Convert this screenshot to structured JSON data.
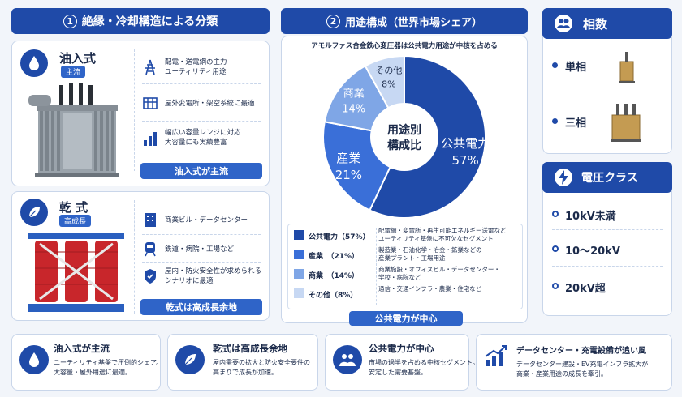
{
  "left_section": {
    "title_num": "1",
    "title": "絶縁・冷却構造による分類",
    "oil": {
      "name": "油入式",
      "badge": "主流",
      "features": [
        {
          "icon": "power-tower-icon",
          "text": "配電・送電網の主力\nユーティリティ用途"
        },
        {
          "icon": "substation-icon",
          "text": "屋外変電所・架空系統に最適"
        },
        {
          "icon": "bar-chart-icon",
          "text": "幅広い容量レンジに対応\n大容量にも実績豊富"
        }
      ],
      "footer": "油入式が主流"
    },
    "dry": {
      "name": "乾 式",
      "badge": "高成長",
      "features": [
        {
          "icon": "building-icon",
          "text": "商業ビル・データセンター"
        },
        {
          "icon": "train-icon",
          "text": "鉄道・病院・工場など"
        },
        {
          "icon": "shield-icon",
          "text": "屋内・防火安全性が求められる\nシナリオに最適"
        }
      ],
      "footer": "乾式は高成長余地"
    }
  },
  "center_section": {
    "title_num": "2",
    "title": "用途構成（世界市場シェア）",
    "subtitle": "アモルファス合金鉄心変圧器は公共電力用途が中核を占める",
    "footer": "公共電力が中心"
  },
  "chart_data": {
    "type": "pie",
    "center_label": "用途別\n構成比",
    "slices": [
      {
        "label": "公共電力",
        "value": 57,
        "color": "#1f4aa8",
        "legend": "公共電力（57%）",
        "desc": "配電網・変電所・再生可能エネルギー送電など\nユーティリティ基盤に不可欠なセグメント"
      },
      {
        "label": "産業",
        "value": 21,
        "color": "#3a6fd8",
        "legend": "産業　（21%）",
        "desc": "製造業・石油化学・冶金・鉱業などの\n産業プラント・工場用途"
      },
      {
        "label": "商業",
        "value": 14,
        "color": "#7fa6e6",
        "legend": "商業　（14%）",
        "desc": "商業施設・オフィスビル・データセンター・\n学校・病院など"
      },
      {
        "label": "その他",
        "value": 8,
        "color": "#c7d8f3",
        "legend": "その他（8%）",
        "desc": "通信・交通インフラ・農業・住宅など"
      }
    ]
  },
  "right_phase": {
    "title": "相数",
    "items": [
      "単相",
      "三相"
    ]
  },
  "right_voltage": {
    "title": "電圧クラス",
    "items": [
      "10kV未満",
      "10～20kV",
      "20kV超"
    ]
  },
  "bottom_cards": [
    {
      "icon": "drop-icon",
      "title": "油入式が主流",
      "text": "ユーティリティ基盤で圧倒的シェア。\n大容量・屋外用途に最適。"
    },
    {
      "icon": "leaf-icon",
      "title": "乾式は高成長余地",
      "text": "屋内需要の拡大と防火安全要件の\n高まりで成長が加速。"
    },
    {
      "icon": "people-icon",
      "title": "公共電力が中心",
      "text": "市場の過半を占める中核セグメント。\n安定した需要基盤。"
    },
    {
      "icon": "growth-chart-icon",
      "title": "データセンター・充電設備が追い風",
      "text": "データセンター建設・EV充電インフラ拡大が\n商業・産業用途の成長を牽引。"
    }
  ],
  "colors": {
    "primary": "#1f4aa8",
    "accent": "#2f64c8",
    "light": "#c7d8f3",
    "transformer_red": "#c8262b"
  }
}
